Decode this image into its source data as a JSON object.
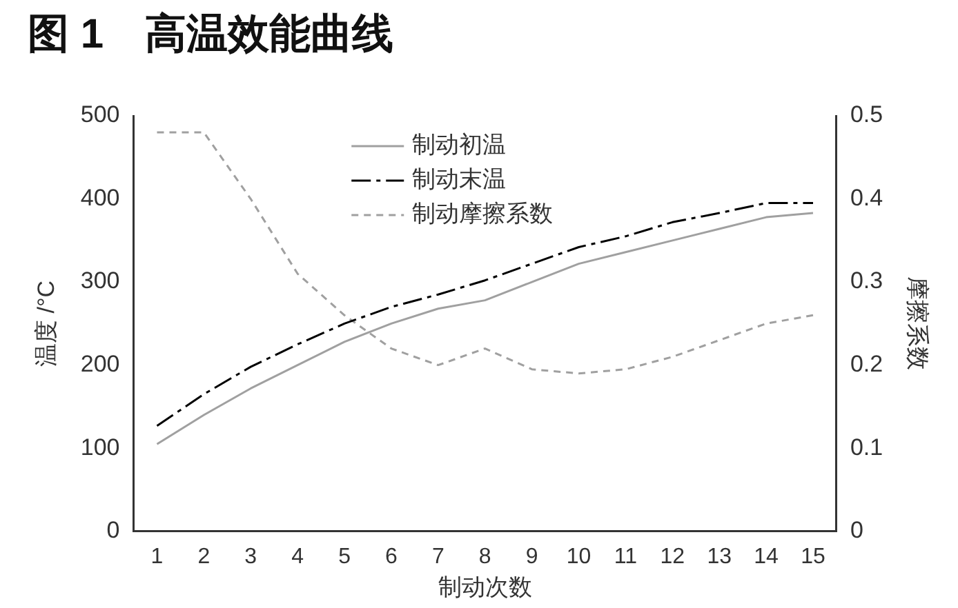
{
  "chart_data": {
    "type": "line",
    "title": "图 1　高温效能曲线",
    "xlabel": "制动次数",
    "ylabel": "温度 /°C",
    "y2label": "摩擦系数",
    "x": [
      1,
      2,
      3,
      4,
      5,
      6,
      7,
      8,
      9,
      10,
      11,
      12,
      13,
      14,
      15
    ],
    "xlim": [
      0.5,
      15.5
    ],
    "xticks": [
      1,
      2,
      3,
      4,
      5,
      6,
      7,
      8,
      9,
      10,
      11,
      12,
      13,
      14,
      15
    ],
    "series": [
      {
        "name": "制动初温",
        "color": "#a0a0a0",
        "line_style": "solid",
        "values": [
          105,
          140,
          172,
          200,
          228,
          250,
          268,
          278,
          300,
          322,
          336,
          350,
          364,
          378,
          383
        ]
      },
      {
        "name": "制动末温",
        "color": "#000000",
        "line_style": "dashdot",
        "values": [
          127,
          165,
          198,
          225,
          250,
          270,
          285,
          302,
          322,
          342,
          355,
          372,
          383,
          395,
          395
        ]
      },
      {
        "name": "制动摩擦系数",
        "color": "#a0a0a0",
        "line_style": "dashed",
        "axis": "y2",
        "values": [
          0.48,
          0.48,
          0.4,
          0.31,
          0.26,
          0.22,
          0.2,
          0.22,
          0.195,
          0.19,
          0.195,
          0.21,
          0.23,
          0.25,
          0.26
        ]
      }
    ],
    "ylim": [
      0,
      500
    ],
    "yticks": [
      0,
      100,
      200,
      300,
      400,
      500
    ],
    "y2lim": [
      0,
      0.5
    ],
    "y2ticks": [
      0,
      0.1,
      0.2,
      0.3,
      0.4,
      0.5
    ],
    "legend": "top",
    "grid": false,
    "marker": "none"
  }
}
